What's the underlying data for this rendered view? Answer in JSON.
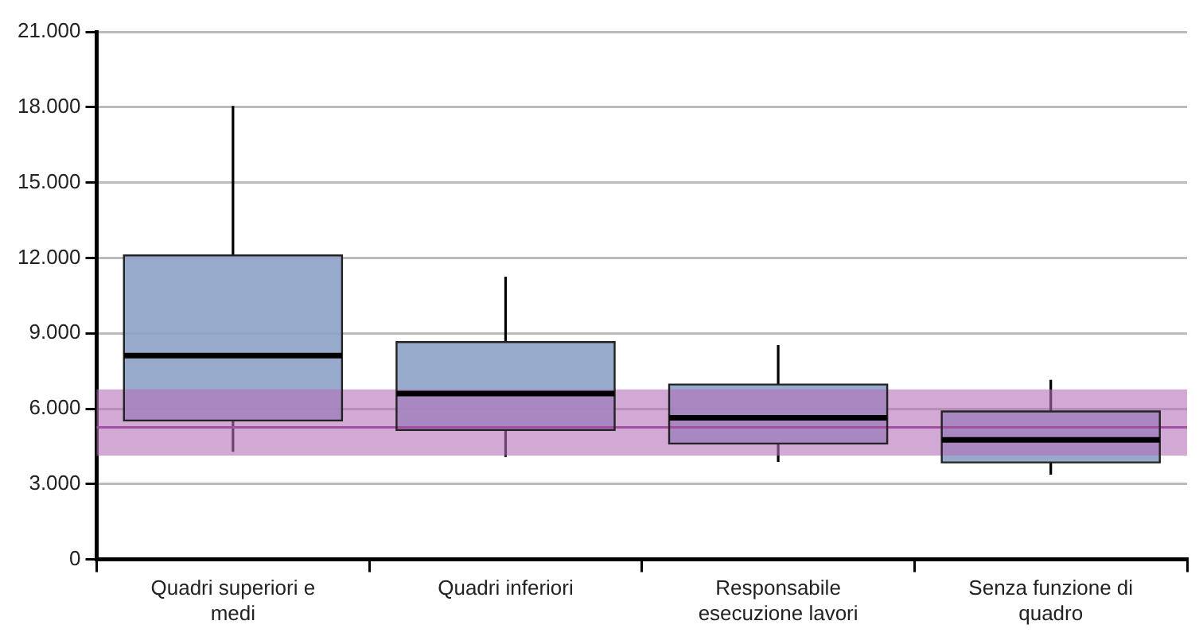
{
  "chart_data": {
    "type": "box",
    "categories": [
      "Quadri superiori e medi",
      "Quadri inferiori",
      "Responsabile esecuzione lavori",
      "Senza funzione di quadro"
    ],
    "boxes": [
      {
        "low": 4280,
        "q1": 5530,
        "median": 8110,
        "q3": 12100,
        "high": 18050
      },
      {
        "low": 4080,
        "q1": 5150,
        "median": 6600,
        "q3": 8650,
        "high": 11250
      },
      {
        "low": 3880,
        "q1": 4610,
        "median": 5640,
        "q3": 6960,
        "high": 8530
      },
      {
        "low": 3370,
        "q1": 3860,
        "median": 4760,
        "q3": 5890,
        "high": 7150
      }
    ],
    "color": "#8fa3c8",
    "ylim": [
      0,
      21000
    ],
    "yticks": [
      {
        "value": 0,
        "label": "0"
      },
      {
        "value": 3000,
        "label": "3.000"
      },
      {
        "value": 6000,
        "label": "6.000"
      },
      {
        "value": 9000,
        "label": "9.000"
      },
      {
        "value": 12000,
        "label": "12.000"
      },
      {
        "value": 15000,
        "label": "15.000"
      },
      {
        "value": 18000,
        "label": "18.000"
      },
      {
        "value": 21000,
        "label": "21.000"
      }
    ],
    "grid": "y",
    "legend": false,
    "bands": [
      {
        "axis": "y",
        "from": 4130,
        "to": 6770,
        "color": "#b46fb8"
      }
    ],
    "ref_lines": [
      {
        "axis": "y",
        "value": 5260,
        "color": "#a0509f"
      }
    ]
  }
}
